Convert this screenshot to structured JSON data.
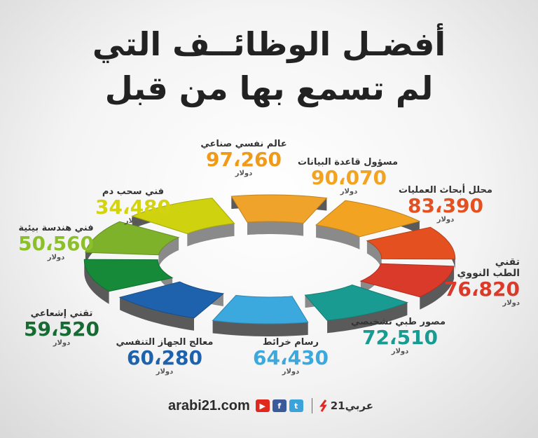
{
  "title_line1": "أفضـل الوظائــف التي",
  "title_line2": "لم تسمع بها من قبل",
  "unit": "دولار",
  "chart_data": {
    "type": "pie",
    "title": "أفضـل الوظائــف التي لم تسمع بها من قبل",
    "series": [
      {
        "name": "عالم نفسي صناعي",
        "label": "97،260",
        "value": 97260,
        "color": "#f0a32a"
      },
      {
        "name": "مسؤول قاعدة البيانات",
        "label": "90،070",
        "value": 90070,
        "color": "#f2a322"
      },
      {
        "name": "محلل أبحاث العمليات",
        "label": "83،390",
        "value": 83390,
        "color": "#e55020"
      },
      {
        "name": "تقني الطب النووي",
        "label": "76،820",
        "value": 76820,
        "color": "#d93a2a"
      },
      {
        "name": "مصور طبي تشخيصي",
        "label": "72،510",
        "value": 72510,
        "color": "#1a9b91"
      },
      {
        "name": "رسام خرائط",
        "label": "64،430",
        "value": 64430,
        "color": "#3ba8de"
      },
      {
        "name": "معالج الجهاز التنفسي",
        "label": "60،280",
        "value": 60280,
        "color": "#1e62ad"
      },
      {
        "name": "تقني إشعاعي",
        "label": "59،520",
        "value": 59520,
        "color": "#178a3a"
      },
      {
        "name": "فني هندسة بيئية",
        "label": "50،560",
        "value": 50560,
        "color": "#7fb22b"
      },
      {
        "name": "فني سحب دم",
        "label": "34،480",
        "value": 34480,
        "color": "#cfd20e"
      }
    ]
  },
  "footer": {
    "site": "arabi21.com",
    "brand": "عربي21",
    "icons": [
      "youtube-icon",
      "facebook-icon",
      "twitter-icon"
    ]
  }
}
